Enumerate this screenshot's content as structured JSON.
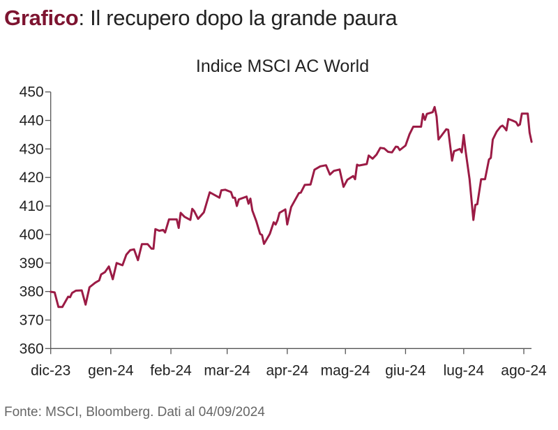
{
  "heading": {
    "label": "Grafico",
    "text": ": Il recupero dopo la grande paura"
  },
  "source": "Fonte: MSCI, Bloomberg. Dati al 04/09/2024",
  "colors": {
    "line": "#9b1b45",
    "heading_accent": "#7d1430",
    "axis": "#555555"
  },
  "chart_data": {
    "type": "line",
    "title": "Indice MSCI AC World",
    "xlabel": "",
    "ylabel": "",
    "ylim": [
      360,
      450
    ],
    "yticks": [
      360,
      370,
      380,
      390,
      400,
      410,
      420,
      430,
      440,
      450
    ],
    "xlim": [
      "2023-12-01",
      "2024-08-05"
    ],
    "xticks": [
      {
        "date": "2023-12-01",
        "label": "dic-23"
      },
      {
        "date": "2024-01-01",
        "label": "gen-24"
      },
      {
        "date": "2024-02-01",
        "label": "feb-24"
      },
      {
        "date": "2024-03-01",
        "label": "mar-24"
      },
      {
        "date": "2024-04-01",
        "label": "apr-24"
      },
      {
        "date": "2024-05-01",
        "label": "mag-24"
      },
      {
        "date": "2024-06-01",
        "label": "giu-24"
      },
      {
        "date": "2024-07-01",
        "label": "lug-24"
      },
      {
        "date": "2024-08-01",
        "label": "ago-24"
      }
    ],
    "grid": false,
    "series": [
      {
        "x": [
          "2023-12-01",
          "2023-12-03",
          "2023-12-05",
          "2023-12-07",
          "2023-12-10",
          "2023-12-11",
          "2023-12-12",
          "2023-12-14",
          "2023-12-17",
          "2023-12-19",
          "2023-12-21",
          "2023-12-24",
          "2023-12-26",
          "2023-12-27",
          "2023-12-29",
          "2023-12-31",
          "2024-01-02",
          "2024-01-04",
          "2024-01-07",
          "2024-01-09",
          "2024-01-11",
          "2024-01-13",
          "2024-01-15",
          "2024-01-17",
          "2024-01-20",
          "2024-01-22",
          "2024-01-23",
          "2024-01-24",
          "2024-01-26",
          "2024-01-28",
          "2024-01-29",
          "2024-01-31",
          "2024-02-04",
          "2024-02-05",
          "2024-02-06",
          "2024-02-08",
          "2024-02-11",
          "2024-02-12",
          "2024-02-13",
          "2024-02-15",
          "2024-02-18",
          "2024-02-21",
          "2024-02-26",
          "2024-02-27",
          "2024-02-29",
          "2024-03-03",
          "2024-03-04",
          "2024-03-05",
          "2024-03-06",
          "2024-03-07",
          "2024-03-11",
          "2024-03-12",
          "2024-03-13",
          "2024-03-14",
          "2024-03-16",
          "2024-03-18",
          "2024-03-19",
          "2024-03-20",
          "2024-03-23",
          "2024-03-25",
          "2024-03-26",
          "2024-03-27",
          "2024-03-28",
          "2024-03-31",
          "2024-04-01",
          "2024-04-03",
          "2024-04-07",
          "2024-04-08",
          "2024-04-10",
          "2024-04-13",
          "2024-04-15",
          "2024-04-18",
          "2024-04-21",
          "2024-04-23",
          "2024-04-25",
          "2024-04-28",
          "2024-04-30",
          "2024-05-02",
          "2024-05-05",
          "2024-05-06",
          "2024-05-07",
          "2024-05-08",
          "2024-05-12",
          "2024-05-13",
          "2024-05-15",
          "2024-05-17",
          "2024-05-19",
          "2024-05-21",
          "2024-05-23",
          "2024-05-25",
          "2024-05-27",
          "2024-05-28",
          "2024-05-29",
          "2024-06-01",
          "2024-06-03",
          "2024-06-05",
          "2024-06-09",
          "2024-06-10",
          "2024-06-11",
          "2024-06-12",
          "2024-06-15",
          "2024-06-16",
          "2024-06-17",
          "2024-06-18",
          "2024-06-22",
          "2024-06-23",
          "2024-06-25",
          "2024-06-26",
          "2024-06-29",
          "2024-06-30",
          "2024-07-01",
          "2024-07-02",
          "2024-07-04",
          "2024-07-06",
          "2024-07-07",
          "2024-07-08",
          "2024-07-10",
          "2024-07-12",
          "2024-07-14",
          "2024-07-15",
          "2024-07-16",
          "2024-07-18",
          "2024-07-20",
          "2024-07-21",
          "2024-07-22",
          "2024-07-23",
          "2024-07-24",
          "2024-07-26",
          "2024-07-28",
          "2024-07-29",
          "2024-07-30",
          "2024-07-31",
          "2024-08-03",
          "2024-08-04",
          "2024-08-05"
        ],
        "y": [
          379.9,
          379.7,
          374.6,
          374.6,
          378.2,
          378.0,
          379.5,
          380.3,
          380.4,
          375.4,
          381.5,
          383.1,
          383.9,
          386.0,
          386.8,
          388.8,
          384.3,
          390.0,
          389.2,
          392.9,
          394.5,
          394.8,
          391.0,
          396.6,
          396.6,
          395.0,
          395.0,
          401.9,
          401.3,
          401.6,
          400.7,
          405.3,
          405.3,
          402.3,
          407.6,
          406.2,
          405.1,
          409.0,
          408.2,
          405.5,
          407.8,
          414.8,
          412.9,
          415.5,
          415.7,
          414.9,
          412.9,
          412.9,
          410.0,
          412.3,
          413.3,
          410.8,
          412.6,
          408.4,
          404.7,
          400.2,
          399.8,
          396.7,
          400.2,
          404.3,
          403.5,
          405.1,
          407.6,
          408.8,
          403.5,
          409.6,
          414.5,
          414.7,
          417.4,
          417.5,
          422.7,
          423.9,
          424.3,
          421.0,
          422.3,
          422.8,
          416.7,
          419.2,
          420.5,
          419.4,
          424.5,
          424.2,
          424.7,
          427.7,
          426.6,
          428.0,
          430.4,
          430.2,
          429.0,
          428.8,
          430.8,
          430.7,
          429.6,
          431.2,
          435.1,
          437.8,
          437.8,
          442.3,
          440.2,
          442.3,
          442.9,
          444.7,
          441.4,
          433.3,
          436.9,
          436.7,
          425.9,
          429.2,
          430.0,
          428.8,
          434.9,
          429.2,
          419.4,
          405.1,
          410.4,
          410.6,
          419.4,
          419.4,
          426.3,
          426.9,
          433.3,
          436.1,
          437.8,
          438.2,
          437.5,
          436.5,
          440.5,
          440.0,
          439.4,
          438.2,
          438.6,
          442.4,
          442.4,
          435.7,
          432.5
        ]
      }
    ]
  }
}
